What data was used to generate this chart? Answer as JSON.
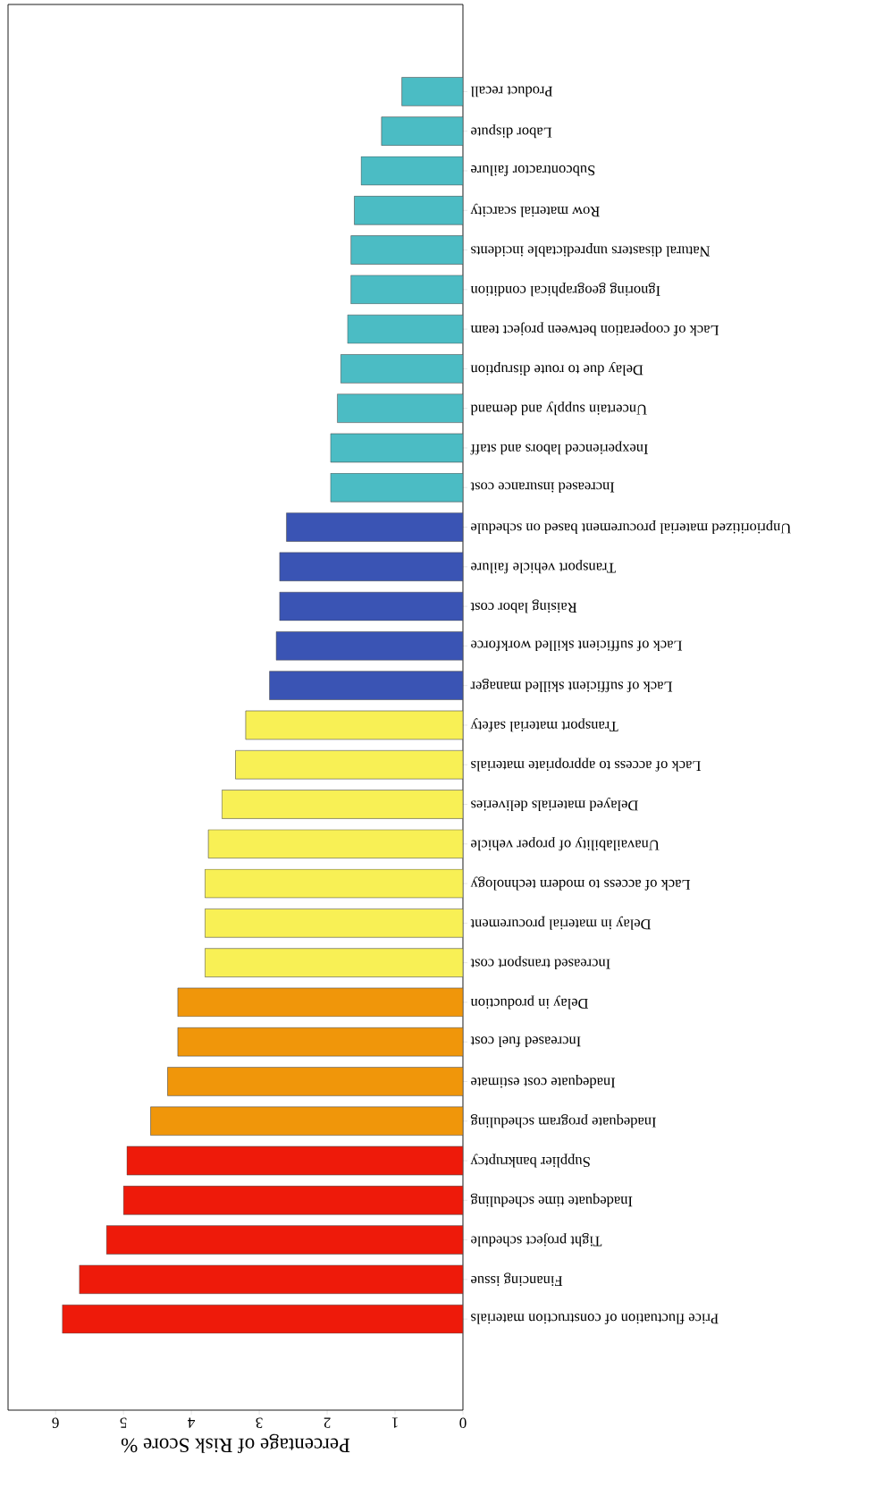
{
  "chart_data": {
    "type": "bar",
    "orientation": "horizontal",
    "xlabel": "Percentage of Risk Score %",
    "categories": [
      "Product recall",
      "Labor dispute",
      "Subcontractor failure",
      "Row material scarcity",
      "Natural disasters unpredictable incidents",
      "Ignoring geographical condition",
      "Lack of cooperation between project team",
      "Delay due to route disruption",
      "Uncertain supply and demand",
      "Inexperienced labors and staff",
      "Increased insurance cost",
      "Unprioritized material procurement based on schedule",
      "Transport vehicle failure",
      "Raising labor cost",
      "Lack of sufficient skilled workforce",
      "Lack of sufficient skilled manager",
      "Transport material safety",
      "Lack of access to appropriate materials",
      "Delayed materials deliveries",
      "Unavailability of proper vehicle",
      "Lack of access to modern technology",
      "Delay in material procurement",
      "Increased transport cost",
      "Delay in production",
      "Increased fuel cost",
      "Inadequate cost estimate",
      "Inadequate program scheduling",
      "Supplier bankruptcy",
      "Inadequate time scheduling",
      "Tight project schedule",
      "Financing issue",
      "Price fluctuation of construction materials"
    ],
    "values": [
      0.9,
      1.2,
      1.5,
      1.6,
      1.65,
      1.65,
      1.7,
      1.8,
      1.85,
      1.95,
      1.95,
      2.6,
      2.7,
      2.7,
      2.75,
      2.85,
      3.2,
      3.35,
      3.55,
      3.75,
      3.8,
      3.8,
      3.8,
      4.2,
      4.2,
      4.35,
      4.6,
      4.95,
      5.0,
      5.25,
      5.65,
      5.9
    ],
    "colors": [
      "#4bbcc4",
      "#4bbcc4",
      "#4bbcc4",
      "#4bbcc4",
      "#4bbcc4",
      "#4bbcc4",
      "#4bbcc4",
      "#4bbcc4",
      "#4bbcc4",
      "#4bbcc4",
      "#4bbcc4",
      "#3a54b4",
      "#3a54b4",
      "#3a54b4",
      "#3a54b4",
      "#3a54b4",
      "#f8f055",
      "#f8f055",
      "#f8f055",
      "#f8f055",
      "#f8f055",
      "#f8f055",
      "#f8f055",
      "#f0960a",
      "#f0960a",
      "#f0960a",
      "#f0960a",
      "#ee1a0a",
      "#ee1a0a",
      "#ee1a0a",
      "#ee1a0a",
      "#ee1a0a"
    ],
    "xlim": [
      6.7,
      0
    ],
    "xticks": [
      0,
      1,
      2,
      3,
      4,
      5,
      6
    ]
  }
}
